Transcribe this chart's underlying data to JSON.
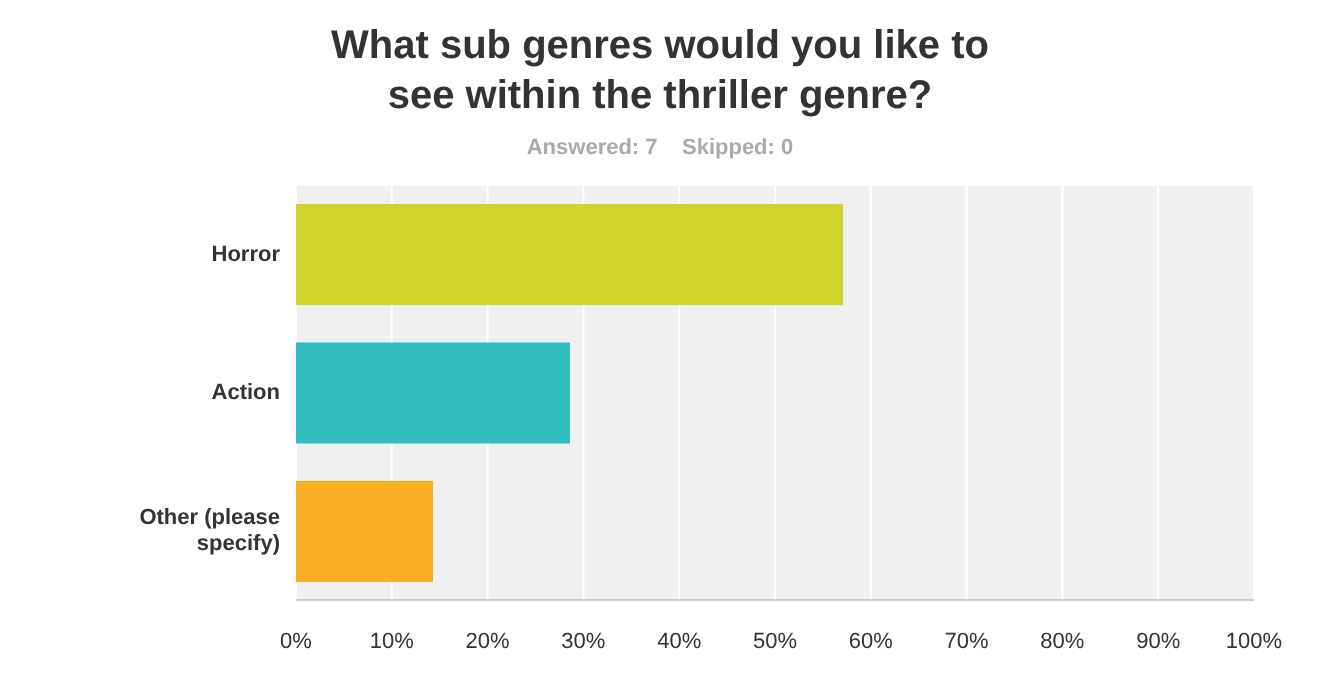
{
  "chart_data": {
    "type": "bar",
    "orientation": "horizontal",
    "title": "What sub genres would you like to see within the thriller genre?",
    "subtitle": "Answered: 7    Skipped: 0",
    "categories": [
      "Horror",
      "Action",
      "Other (please specify)"
    ],
    "values": [
      57.1,
      28.6,
      14.3
    ],
    "colors": [
      "#d0d42a",
      "#32bec0",
      "#f7ae22"
    ],
    "xlim": [
      0,
      100
    ],
    "xticks": [
      {
        "value": 0,
        "label": "0%"
      },
      {
        "value": 10,
        "label": "10%"
      },
      {
        "value": 20,
        "label": "20%"
      },
      {
        "value": 30,
        "label": "30%"
      },
      {
        "value": 40,
        "label": "40%"
      },
      {
        "value": 50,
        "label": "50%"
      },
      {
        "value": 60,
        "label": "60%"
      },
      {
        "value": 70,
        "label": "70%"
      },
      {
        "value": 80,
        "label": "80%"
      },
      {
        "value": 90,
        "label": "90%"
      },
      {
        "value": 100,
        "label": "100%"
      }
    ],
    "grid": "x"
  }
}
